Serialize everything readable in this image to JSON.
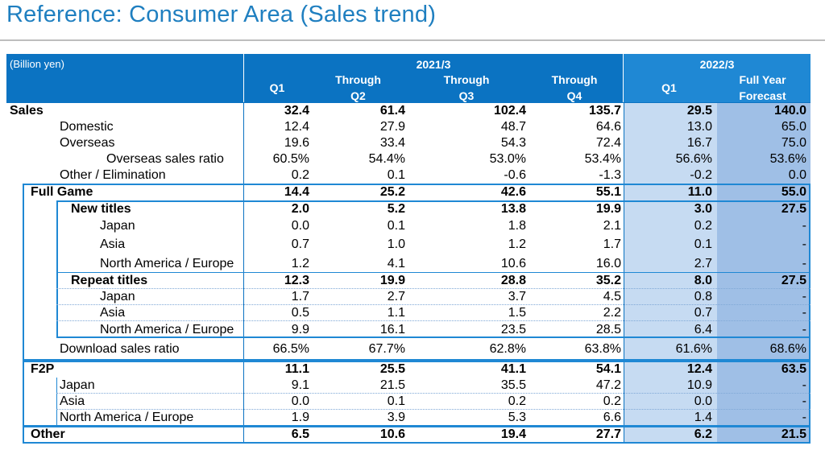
{
  "title": "Reference: Consumer Area (Sales trend)",
  "header": {
    "unit": "(Billion yen)",
    "fy2021": "2021/3",
    "fy2022": "2022/3",
    "cols": [
      {
        "l1": "",
        "l2": "Q1"
      },
      {
        "l1": "Through",
        "l2": "Q2"
      },
      {
        "l1": "Through",
        "l2": "Q3"
      },
      {
        "l1": "Through",
        "l2": "Q4"
      },
      {
        "l1": "",
        "l2": "Q1"
      },
      {
        "l1": "Full Year",
        "l2": "Forecast"
      }
    ]
  },
  "rows": [
    {
      "label": "Sales",
      "v": [
        "32.4",
        "61.4",
        "102.4",
        "135.7",
        "29.5",
        "140.0"
      ]
    },
    {
      "label": "Domestic",
      "v": [
        "12.4",
        "27.9",
        "48.7",
        "64.6",
        "13.0",
        "65.0"
      ]
    },
    {
      "label": "Overseas",
      "v": [
        "19.6",
        "33.4",
        "54.3",
        "72.4",
        "16.7",
        "75.0"
      ]
    },
    {
      "label": "Overseas sales ratio",
      "v": [
        "60.5%",
        "54.4%",
        "53.0%",
        "53.4%",
        "56.6%",
        "53.6%"
      ]
    },
    {
      "label": "Other / Elimination",
      "v": [
        "0.2",
        "0.1",
        "-0.6",
        "-1.3",
        "-0.2",
        "0.0"
      ]
    },
    {
      "label": "Full Game",
      "v": [
        "14.4",
        "25.2",
        "42.6",
        "55.1",
        "11.0",
        "55.0"
      ]
    },
    {
      "label": "New titles",
      "v": [
        "2.0",
        "5.2",
        "13.8",
        "19.9",
        "3.0",
        "27.5"
      ]
    },
    {
      "label": "Japan",
      "v": [
        "0.0",
        "0.1",
        "1.8",
        "2.1",
        "0.2",
        "-"
      ]
    },
    {
      "label": "Asia",
      "v": [
        "0.7",
        "1.0",
        "1.2",
        "1.7",
        "0.1",
        "-"
      ]
    },
    {
      "label": "North America / Europe",
      "v": [
        "1.2",
        "4.1",
        "10.6",
        "16.0",
        "2.7",
        "-"
      ]
    },
    {
      "label": "Repeat titles",
      "v": [
        "12.3",
        "19.9",
        "28.8",
        "35.2",
        "8.0",
        "27.5"
      ]
    },
    {
      "label": "Japan",
      "v": [
        "1.7",
        "2.7",
        "3.7",
        "4.5",
        "0.8",
        "-"
      ]
    },
    {
      "label": "Asia",
      "v": [
        "0.5",
        "1.1",
        "1.5",
        "2.2",
        "0.7",
        "-"
      ]
    },
    {
      "label": "North America / Europe",
      "v": [
        "9.9",
        "16.1",
        "23.5",
        "28.5",
        "6.4",
        "-"
      ]
    },
    {
      "label": "Download sales ratio",
      "v": [
        "66.5%",
        "67.7%",
        "62.8%",
        "63.8%",
        "61.6%",
        "68.6%"
      ]
    },
    {
      "label": "F2P",
      "v": [
        "11.1",
        "25.5",
        "41.1",
        "54.1",
        "12.4",
        "63.5"
      ]
    },
    {
      "label": "Japan",
      "v": [
        "9.1",
        "21.5",
        "35.5",
        "47.2",
        "10.9",
        "-"
      ]
    },
    {
      "label": "Asia",
      "v": [
        "0.0",
        "0.1",
        "0.2",
        "0.2",
        "0.0",
        "-"
      ]
    },
    {
      "label": "North America / Europe",
      "v": [
        "1.9",
        "3.9",
        "5.3",
        "6.6",
        "1.4",
        "-"
      ]
    },
    {
      "label": "Other",
      "v": [
        "6.5",
        "10.6",
        "19.4",
        "27.7",
        "6.2",
        "21.5"
      ]
    }
  ]
}
